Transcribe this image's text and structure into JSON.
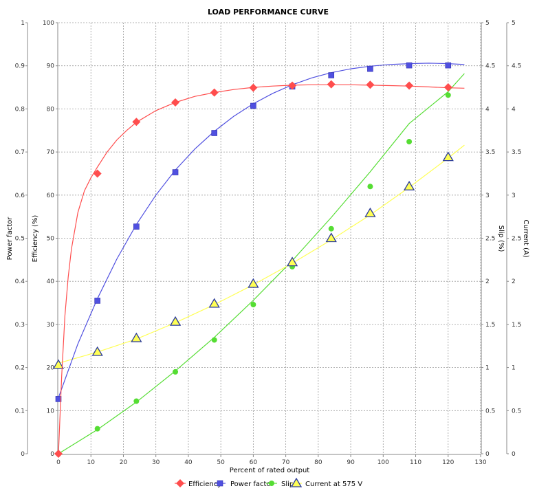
{
  "chart_data": {
    "type": "line",
    "title": "LOAD PERFORMANCE CURVE",
    "xlabel": "Percent of rated output",
    "xlim": [
      0,
      130
    ],
    "x_ticks": [
      0,
      10,
      20,
      30,
      40,
      50,
      60,
      70,
      80,
      90,
      100,
      110,
      120,
      130
    ],
    "grid": true,
    "legend_position": "bottom",
    "axes": {
      "power_factor": {
        "label": "Power factor",
        "side": "left",
        "range": [
          0,
          1
        ],
        "ticks": [
          "0",
          "0.1",
          "0.2",
          "0.3",
          "0.4",
          "0.5",
          "0.6",
          "0.7",
          "0.8",
          "0.9",
          "1"
        ]
      },
      "efficiency": {
        "label": "Efficiency (%)",
        "side": "left",
        "range": [
          0,
          100
        ],
        "ticks": [
          "0",
          "10",
          "20",
          "30",
          "40",
          "50",
          "60",
          "70",
          "80",
          "90",
          "100"
        ]
      },
      "slip": {
        "label": "Slip (%)",
        "side": "right",
        "range": [
          0,
          5
        ],
        "ticks": [
          "0",
          "0.5",
          "1",
          "1.5",
          "2",
          "2.5",
          "3",
          "3.5",
          "4",
          "4.5",
          "5"
        ]
      },
      "current": {
        "label": "Current (A)",
        "side": "right",
        "range": [
          0,
          5
        ],
        "ticks": [
          "0",
          "0.5",
          "1",
          "1.5",
          "2",
          "2.5",
          "3",
          "3.5",
          "4",
          "4.5",
          "5"
        ]
      }
    },
    "series": [
      {
        "name": "Efficiency",
        "axis": "efficiency",
        "color": "#ff4d4d",
        "marker": "diamond",
        "points": [
          [
            0,
            0
          ],
          [
            12,
            65
          ],
          [
            24,
            77
          ],
          [
            36,
            81.5
          ],
          [
            48,
            83.8
          ],
          [
            60,
            84.9
          ],
          [
            72,
            85.4
          ],
          [
            84,
            85.7
          ],
          [
            96,
            85.6
          ],
          [
            108,
            85.4
          ],
          [
            120,
            85
          ]
        ],
        "curve": [
          [
            0,
            0
          ],
          [
            1,
            18
          ],
          [
            2,
            32
          ],
          [
            3,
            41
          ],
          [
            4,
            47.5
          ],
          [
            6,
            56
          ],
          [
            8,
            61
          ],
          [
            10,
            64
          ],
          [
            12,
            66.5
          ],
          [
            15,
            70
          ],
          [
            18,
            72.8
          ],
          [
            21,
            75
          ],
          [
            24,
            76.9
          ],
          [
            30,
            79.6
          ],
          [
            36,
            81.5
          ],
          [
            42,
            82.9
          ],
          [
            48,
            83.8
          ],
          [
            54,
            84.5
          ],
          [
            60,
            85
          ],
          [
            66,
            85.3
          ],
          [
            72,
            85.5
          ],
          [
            78,
            85.6
          ],
          [
            84,
            85.6
          ],
          [
            90,
            85.6
          ],
          [
            96,
            85.5
          ],
          [
            102,
            85.4
          ],
          [
            108,
            85.3
          ],
          [
            114,
            85.1
          ],
          [
            120,
            84.9
          ],
          [
            125,
            84.8
          ]
        ]
      },
      {
        "name": "Power factor",
        "axis": "power_factor",
        "color": "#5050e0",
        "marker": "square",
        "points": [
          [
            0,
            0.127
          ],
          [
            12,
            0.355
          ],
          [
            24,
            0.527
          ],
          [
            36,
            0.653
          ],
          [
            48,
            0.744
          ],
          [
            60,
            0.807
          ],
          [
            72,
            0.852
          ],
          [
            84,
            0.878
          ],
          [
            96,
            0.893
          ],
          [
            108,
            0.901
          ],
          [
            120,
            0.901
          ]
        ],
        "curve": [
          [
            0,
            0.13
          ],
          [
            6,
            0.255
          ],
          [
            12,
            0.36
          ],
          [
            18,
            0.452
          ],
          [
            24,
            0.532
          ],
          [
            30,
            0.6
          ],
          [
            36,
            0.658
          ],
          [
            42,
            0.707
          ],
          [
            48,
            0.748
          ],
          [
            54,
            0.783
          ],
          [
            60,
            0.812
          ],
          [
            66,
            0.836
          ],
          [
            72,
            0.856
          ],
          [
            78,
            0.872
          ],
          [
            84,
            0.884
          ],
          [
            90,
            0.893
          ],
          [
            96,
            0.899
          ],
          [
            102,
            0.903
          ],
          [
            108,
            0.905
          ],
          [
            114,
            0.906
          ],
          [
            120,
            0.905
          ],
          [
            125,
            0.903
          ]
        ]
      },
      {
        "name": "Slip",
        "axis": "slip",
        "color": "#55dd33",
        "marker": "circle",
        "points": [
          [
            0,
            0
          ],
          [
            12,
            0.29
          ],
          [
            24,
            0.61
          ],
          [
            36,
            0.95
          ],
          [
            48,
            1.32
          ],
          [
            60,
            1.73
          ],
          [
            72,
            2.17
          ],
          [
            84,
            2.61
          ],
          [
            96,
            3.1
          ],
          [
            108,
            3.62
          ],
          [
            120,
            4.16
          ]
        ],
        "curve": [
          [
            0,
            0
          ],
          [
            12,
            0.28
          ],
          [
            24,
            0.6
          ],
          [
            36,
            0.96
          ],
          [
            48,
            1.35
          ],
          [
            60,
            1.78
          ],
          [
            72,
            2.24
          ],
          [
            84,
            2.74
          ],
          [
            96,
            3.27
          ],
          [
            108,
            3.83
          ],
          [
            120,
            4.2
          ],
          [
            125,
            4.41
          ]
        ]
      },
      {
        "name": "Current at 575 V",
        "axis": "current",
        "color": "#ffff55",
        "marker": "triangle",
        "points": [
          [
            0,
            1.03
          ],
          [
            12,
            1.18
          ],
          [
            24,
            1.34
          ],
          [
            36,
            1.53
          ],
          [
            48,
            1.74
          ],
          [
            60,
            1.97
          ],
          [
            72,
            2.22
          ],
          [
            84,
            2.5
          ],
          [
            96,
            2.79
          ],
          [
            108,
            3.1
          ],
          [
            120,
            3.44
          ]
        ],
        "curve": [
          [
            0,
            1.05
          ],
          [
            12,
            1.18
          ],
          [
            24,
            1.33
          ],
          [
            36,
            1.52
          ],
          [
            48,
            1.73
          ],
          [
            60,
            1.96
          ],
          [
            72,
            2.21
          ],
          [
            84,
            2.48
          ],
          [
            96,
            2.77
          ],
          [
            108,
            3.09
          ],
          [
            120,
            3.43
          ],
          [
            125,
            3.58
          ]
        ]
      }
    ]
  }
}
